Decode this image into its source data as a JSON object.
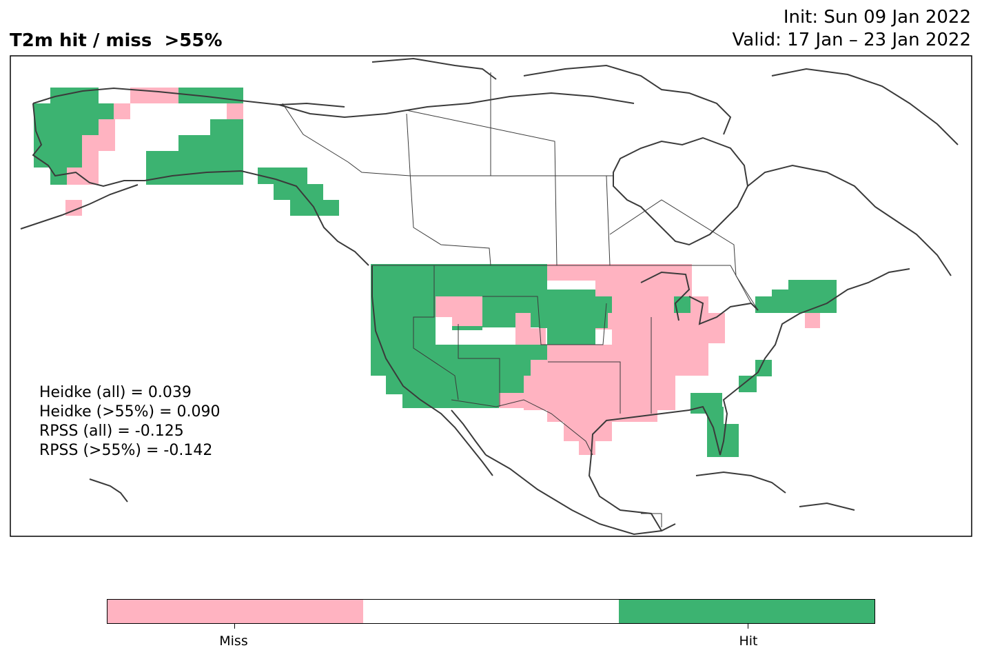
{
  "title": "T2m hit / miss  >55%",
  "init_text": "Init: Sun 09 Jan 2022",
  "valid_text": "Valid: 17 Jan – 23 Jan 2022",
  "colors": {
    "miss": "#ffb3c1",
    "neutral": "#ffffff",
    "hit": "#3cb371",
    "coast": "#3a3a3a"
  },
  "map": {
    "region": "North America",
    "legend_categories": [
      "Miss",
      "Hit"
    ]
  },
  "scores": [
    "Heidke (all) = 0.039",
    "Heidke (>55%) = 0.090",
    "RPSS (all) = -0.125",
    "RPSS (>55%) = -0.142"
  ],
  "colorbar": {
    "segments": [
      "miss",
      "neutral",
      "hit"
    ],
    "labels": {
      "miss": "Miss",
      "hit": "Hit"
    }
  }
}
